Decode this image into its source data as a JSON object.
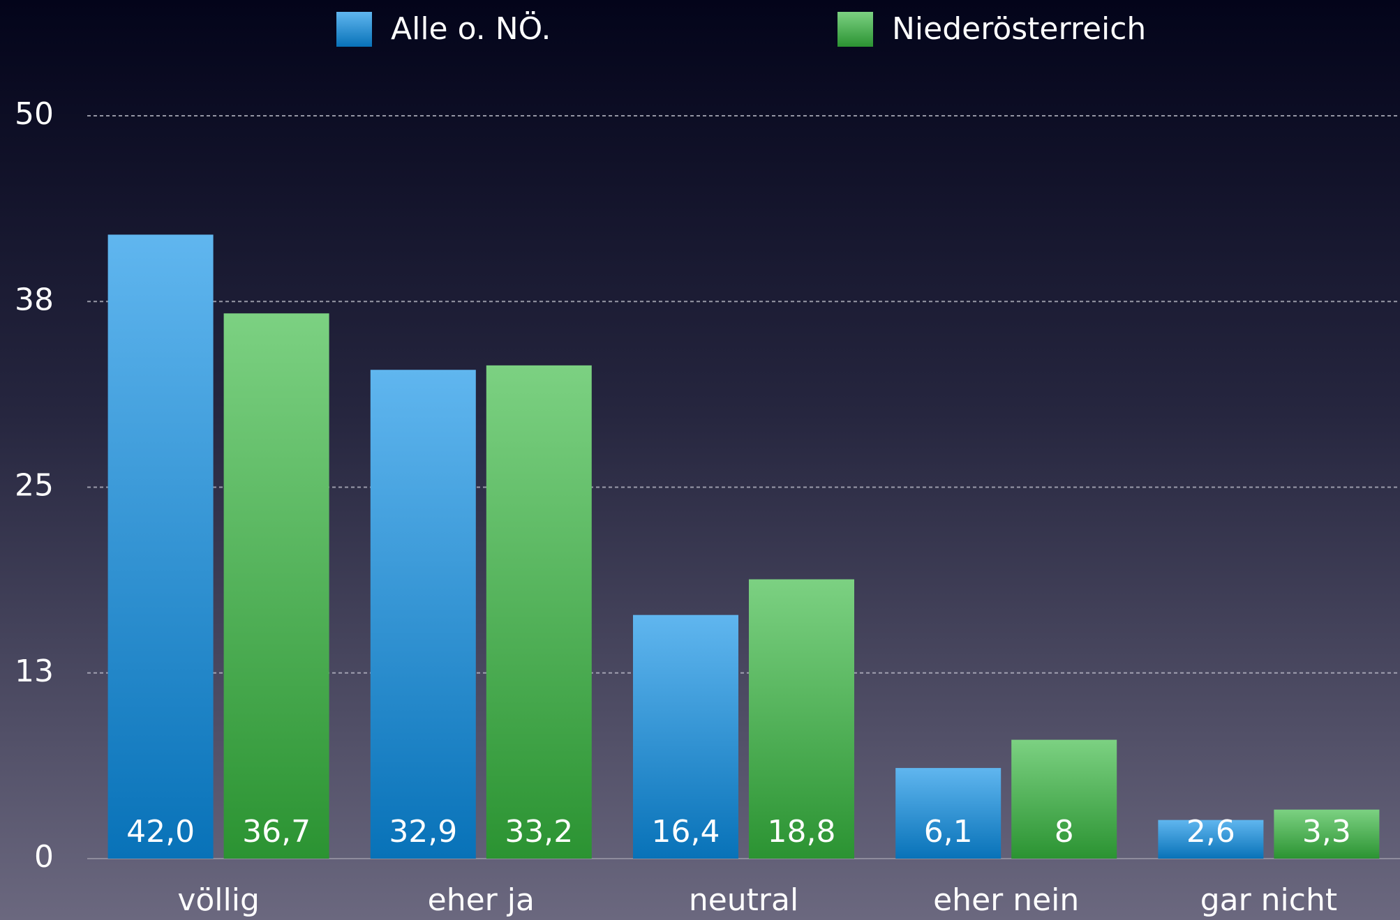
{
  "chart_data": {
    "type": "bar",
    "categories": [
      "völlig",
      "eher ja",
      "neutral",
      "eher nein",
      "gar nicht"
    ],
    "series": [
      {
        "name": "Alle o. NÖ.",
        "color": "#0a8fe6",
        "values": [
          42.0,
          32.9,
          16.4,
          6.1,
          2.6
        ],
        "value_labels": [
          "42,0",
          "32,9",
          "16,4",
          "6,1",
          "2,6"
        ]
      },
      {
        "name": "Niederösterreich",
        "color": "#36b83e",
        "values": [
          36.7,
          33.2,
          18.8,
          8,
          3.3
        ],
        "value_labels": [
          "36,7",
          "33,2",
          "18,8",
          "8",
          "3,3"
        ]
      }
    ],
    "ylim": [
      0,
      50
    ],
    "yticks": [
      0,
      {
        "value": 12.5,
        "label": "13"
      },
      25,
      {
        "value": 37.5,
        "label": "38"
      },
      50
    ],
    "grid": true,
    "legend": "top"
  }
}
